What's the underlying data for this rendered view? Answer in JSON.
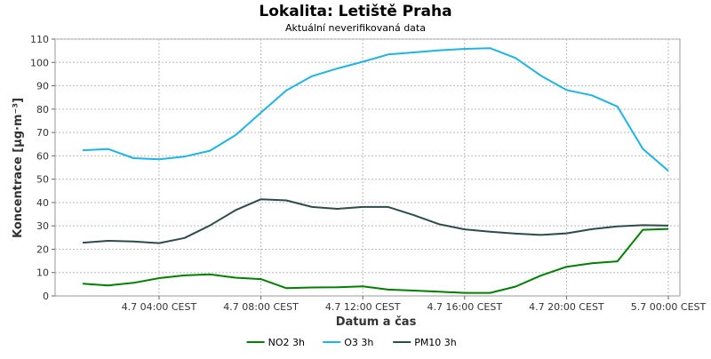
{
  "chart_data": {
    "type": "line",
    "title": "Lokalita: Letiště Praha",
    "subtitle": "Aktuální neverifikovaná data",
    "xlabel": "Datum a čas",
    "ylabel": "Koncentrace [µg·m⁻³]",
    "ylim": [
      0,
      110
    ],
    "yticks": [
      0,
      10,
      20,
      30,
      40,
      50,
      60,
      70,
      80,
      90,
      100,
      110
    ],
    "xlim": [
      "4.7 01:00 CEST",
      "5.7 00:00 CEST"
    ],
    "xtick_labels": [
      "4.7 04:00 CEST",
      "4.7 08:00 CEST",
      "4.7 12:00 CEST",
      "4.7 16:00 CEST",
      "4.7 20:00 CEST",
      "5.7 00:00 CEST"
    ],
    "x": [
      "4.7 01:00",
      "4.7 02:00",
      "4.7 03:00",
      "4.7 04:00",
      "4.7 05:00",
      "4.7 06:00",
      "4.7 07:00",
      "4.7 08:00",
      "4.7 09:00",
      "4.7 10:00",
      "4.7 11:00",
      "4.7 12:00",
      "4.7 13:00",
      "4.7 14:00",
      "4.7 15:00",
      "4.7 16:00",
      "4.7 17:00",
      "4.7 18:00",
      "4.7 19:00",
      "4.7 20:00",
      "4.7 21:00",
      "4.7 22:00",
      "4.7 23:00",
      "5.7 00:00"
    ],
    "grid": true,
    "legend_position": "bottom",
    "series": [
      {
        "name": "NO2 3h",
        "color": "#008000",
        "values": [
          5.2,
          4.5,
          5.6,
          7.6,
          8.8,
          9.2,
          7.8,
          7.2,
          3.3,
          3.6,
          3.7,
          4.1,
          2.7,
          2.3,
          1.8,
          1.3,
          1.3,
          4.0,
          8.7,
          12.5,
          14.0,
          14.8,
          28.3,
          28.7
        ]
      },
      {
        "name": "O3 3h",
        "color": "#1eb4e6",
        "values": [
          62.4,
          62.9,
          59.0,
          58.5,
          59.7,
          62.2,
          68.8,
          78.5,
          88.0,
          94.1,
          97.4,
          100.3,
          103.4,
          104.3,
          105.2,
          105.8,
          106.1,
          101.9,
          94.3,
          88.2,
          85.9,
          81.1,
          63.0,
          53.6
        ]
      },
      {
        "name": "PM10 3h",
        "color": "#2e4b4b",
        "values": [
          22.8,
          23.6,
          23.3,
          22.6,
          24.8,
          30.2,
          36.7,
          41.4,
          40.9,
          38.1,
          37.3,
          38.1,
          38.1,
          34.6,
          30.7,
          28.5,
          27.5,
          26.7,
          26.1,
          26.8,
          28.6,
          29.8,
          30.3,
          30.1
        ]
      }
    ]
  }
}
